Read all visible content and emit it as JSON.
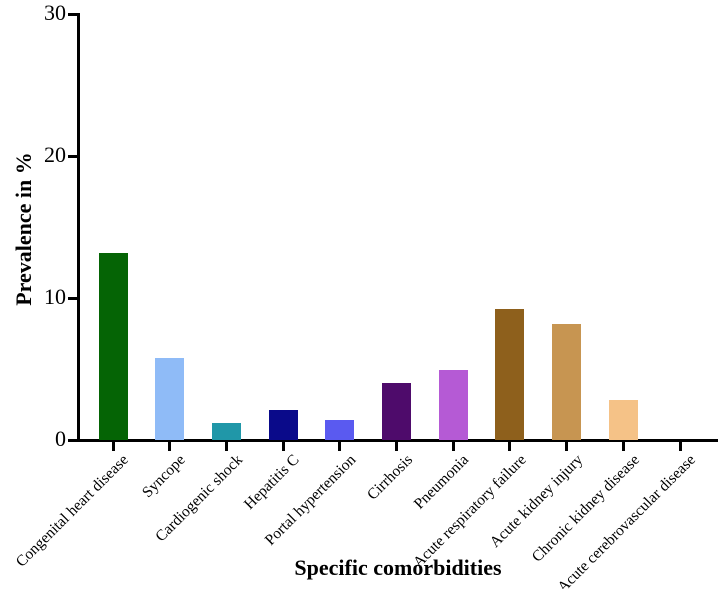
{
  "figure": {
    "background_color": "#ffffff",
    "axis_color": "#000000",
    "text_color": "#000000"
  },
  "chart_data": {
    "type": "bar",
    "title": "",
    "xlabel": "Specific comorbidities",
    "ylabel": "Prevalence in %",
    "categories": [
      "Congenital heart disease",
      "Syncope",
      "Cardiogenic shock",
      "Hepatitis C",
      "Portal hypertension",
      "Cirrhosis",
      "Pneumonia",
      "Acute respiratory failure",
      "Acute kidney injury",
      "Chronic kidney disease",
      "Acute cerebrovascular disease"
    ],
    "values": [
      13.2,
      5.8,
      1.2,
      2.1,
      1.4,
      4.0,
      4.9,
      9.2,
      8.2,
      2.8,
      0
    ],
    "bar_colors": [
      "#056405",
      "#8FBBF7",
      "#2097A8",
      "#0A0A8A",
      "#5A5AF0",
      "#4E0B6B",
      "#B55AD5",
      "#8E601C",
      "#C79551",
      "#F5C287",
      "#000000"
    ],
    "ylim": [
      0,
      30
    ],
    "yticks": [
      0,
      10,
      20,
      30
    ],
    "grid": false,
    "legend": "none",
    "bar_orientation": "vertical",
    "category_label_rotation_deg": -45
  }
}
